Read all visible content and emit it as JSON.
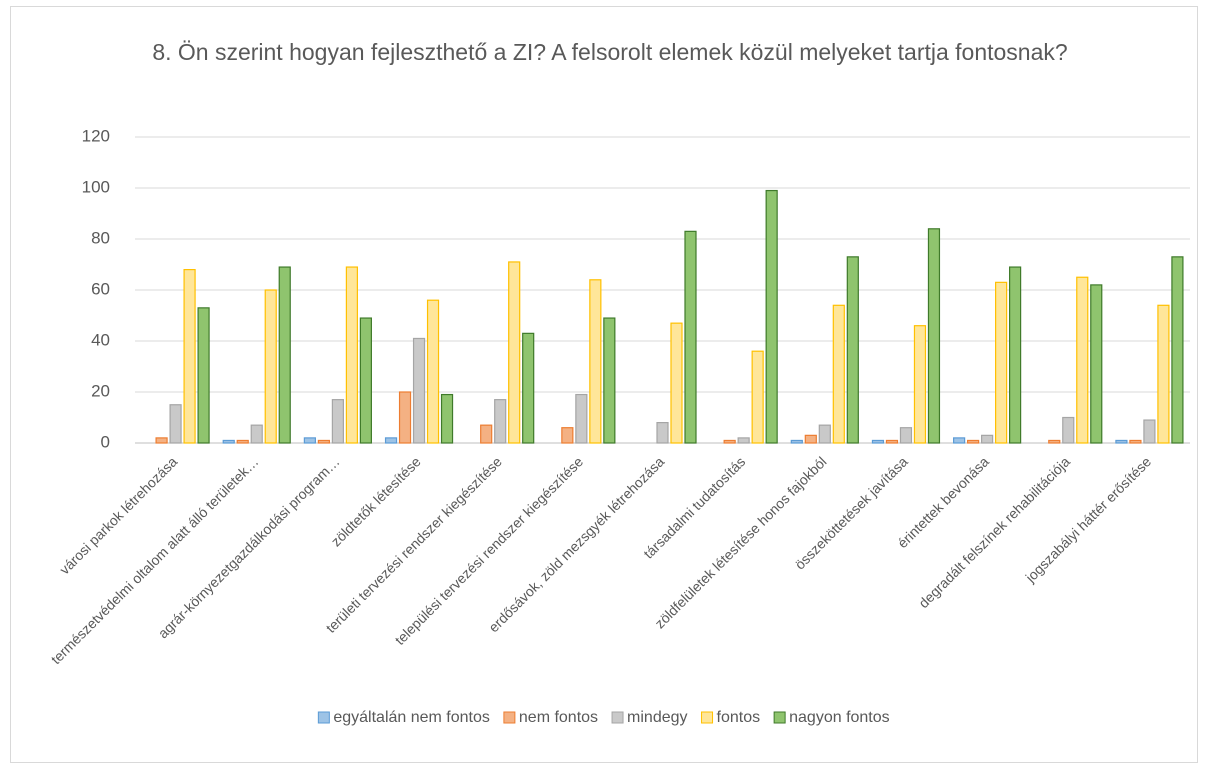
{
  "chart_data": {
    "type": "bar",
    "title": "8. Ön szerint hogyan fejleszthető a ZI? A felsorolt elemek közül melyeket tartja fontosnak?",
    "categories": [
      "városi parkok létrehozása",
      "természetvédelmi oltalom alatt álló területek…",
      "agrár-környezetgazdálkodási program…",
      "zöldtetők létesítése",
      "területi tervezési rendszer kiegészítése",
      "települési tervezési rendszer kiegészítése",
      "erdősávok, zöld mezsgyék létrehozása",
      "társadalmi tudatosítás",
      "zöldfelületek létesítése honos fajokból",
      "összeköttetések javítása",
      "érintettek bevonása",
      "degradált felszínek rehabilitációja",
      "jogszabályi háttér erősítése"
    ],
    "series": [
      {
        "name": "egyáltalán nem fontos",
        "color": "#9dc3e6",
        "values": [
          0,
          1,
          2,
          2,
          0,
          0,
          0,
          0,
          1,
          1,
          2,
          0,
          1
        ]
      },
      {
        "name": "nem fontos",
        "color": "#f4b183",
        "values": [
          2,
          1,
          1,
          20,
          7,
          6,
          0,
          1,
          3,
          1,
          1,
          1,
          1
        ]
      },
      {
        "name": "mindegy",
        "color": "#c9c9c9",
        "values": [
          15,
          7,
          17,
          41,
          17,
          19,
          8,
          2,
          7,
          6,
          3,
          10,
          9
        ]
      },
      {
        "name": "fontos",
        "color": "#ffe699",
        "values": [
          68,
          60,
          69,
          56,
          71,
          64,
          47,
          36,
          54,
          46,
          63,
          65,
          54
        ]
      },
      {
        "name": "nagyon fontos",
        "color": "#8fc46e",
        "values": [
          53,
          69,
          49,
          19,
          43,
          49,
          83,
          99,
          73,
          84,
          69,
          62,
          73
        ]
      }
    ],
    "ylim": [
      0,
      120
    ],
    "yticks": [
      0,
      20,
      40,
      60,
      80,
      100,
      120
    ],
    "grid": true,
    "legend": "bottom"
  }
}
